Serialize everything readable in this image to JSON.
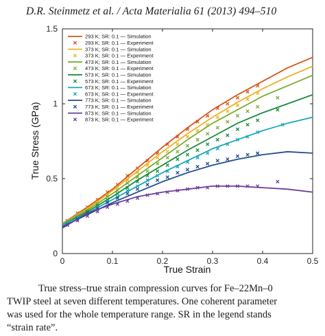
{
  "header": {
    "text": "D.R. Steinmetz et al. / Acta Materialia 61 (2013) 494–510"
  },
  "caption": {
    "lines": [
      "True stress–true strain compression curves for Fe–22Mn–0",
      "TWIP steel at seven different temperatures. One coherent parameter",
      "was used for the whole temperature range. SR in the legend stands",
      "“strain rate”."
    ]
  },
  "chart_data": {
    "type": "line",
    "title": "",
    "xlabel": "True Strain",
    "ylabel": "True Stress (GPa)",
    "xlim": [
      0,
      0.5
    ],
    "ylim": [
      0,
      1.5
    ],
    "xticks": [
      "0",
      "0.1",
      "0.2",
      "0.3",
      "0.4",
      "0.5"
    ],
    "yticks": [
      "0",
      "0.5",
      "1",
      "1.5"
    ],
    "legend_position": "top-left",
    "series": [
      {
        "name": "293 K; SR: 0.1 — Simulation",
        "kind": "line",
        "color": "#d95319",
        "x": [
          0,
          0.05,
          0.1,
          0.15,
          0.2,
          0.25,
          0.3,
          0.35,
          0.4,
          0.45,
          0.5
        ],
        "y": [
          0.2,
          0.31,
          0.43,
          0.57,
          0.71,
          0.84,
          0.96,
          1.06,
          1.15,
          1.24,
          1.31
        ]
      },
      {
        "name": "293 K; SR: 0.1 — Experiment",
        "kind": "markers",
        "color": "#d95319",
        "x": [
          0.01,
          0.03,
          0.05,
          0.07,
          0.09,
          0.11,
          0.13,
          0.15,
          0.17,
          0.19,
          0.21,
          0.23,
          0.25,
          0.27,
          0.29,
          0.31,
          0.33,
          0.35,
          0.37,
          0.39
        ],
        "y": [
          0.22,
          0.27,
          0.31,
          0.36,
          0.41,
          0.46,
          0.52,
          0.57,
          0.62,
          0.67,
          0.73,
          0.78,
          0.83,
          0.88,
          0.92,
          0.97,
          1.0,
          1.04,
          1.08,
          1.12
        ]
      },
      {
        "name": "373 K; SR: 0.1 — Simulation",
        "kind": "line",
        "color": "#edb120",
        "x": [
          0,
          0.05,
          0.1,
          0.15,
          0.2,
          0.25,
          0.3,
          0.35,
          0.4,
          0.45,
          0.5
        ],
        "y": [
          0.2,
          0.3,
          0.42,
          0.55,
          0.68,
          0.8,
          0.91,
          1.01,
          1.1,
          1.18,
          1.25
        ]
      },
      {
        "name": "373 K; SR: 0.1 — Experiment",
        "kind": "markers",
        "color": "#edb120",
        "x": [
          0.01,
          0.03,
          0.05,
          0.07,
          0.09,
          0.11,
          0.13,
          0.15,
          0.17,
          0.19,
          0.21,
          0.23,
          0.25,
          0.27,
          0.29,
          0.31,
          0.33,
          0.35,
          0.37,
          0.39
        ],
        "y": [
          0.21,
          0.26,
          0.3,
          0.34,
          0.39,
          0.44,
          0.49,
          0.54,
          0.59,
          0.64,
          0.68,
          0.73,
          0.78,
          0.82,
          0.86,
          0.91,
          0.95,
          0.99,
          1.03,
          1.07
        ]
      },
      {
        "name": "473 K; SR: 0.1 — Simulation",
        "kind": "line",
        "color": "#77ac30",
        "x": [
          0,
          0.05,
          0.1,
          0.15,
          0.2,
          0.25,
          0.3,
          0.35,
          0.4,
          0.45,
          0.5
        ],
        "y": [
          0.2,
          0.29,
          0.4,
          0.52,
          0.64,
          0.76,
          0.87,
          0.96,
          1.05,
          1.12,
          1.19
        ]
      },
      {
        "name": "473 K; SR: 0.1 — Experiment",
        "kind": "markers",
        "color": "#77ac30",
        "x": [
          0.01,
          0.03,
          0.05,
          0.07,
          0.09,
          0.11,
          0.13,
          0.15,
          0.17,
          0.19,
          0.21,
          0.23,
          0.25,
          0.27,
          0.29,
          0.31,
          0.33,
          0.35,
          0.37,
          0.39,
          0.43
        ],
        "y": [
          0.21,
          0.25,
          0.29,
          0.33,
          0.38,
          0.42,
          0.47,
          0.51,
          0.55,
          0.6,
          0.64,
          0.68,
          0.72,
          0.76,
          0.8,
          0.84,
          0.88,
          0.92,
          0.95,
          0.98,
          1.04
        ]
      },
      {
        "name": "573 K; SR: 0.1 — Simulation",
        "kind": "line",
        "color": "#1a8a3e",
        "x": [
          0,
          0.05,
          0.1,
          0.15,
          0.2,
          0.25,
          0.3,
          0.35,
          0.4,
          0.45,
          0.5
        ],
        "y": [
          0.19,
          0.28,
          0.38,
          0.49,
          0.59,
          0.69,
          0.78,
          0.87,
          0.94,
          1.0,
          1.06
        ]
      },
      {
        "name": "573 K; SR: 0.1 — Experiment",
        "kind": "markers",
        "color": "#1a8a3e",
        "x": [
          0.01,
          0.03,
          0.05,
          0.07,
          0.09,
          0.11,
          0.13,
          0.15,
          0.17,
          0.19,
          0.21,
          0.23,
          0.25,
          0.27,
          0.29,
          0.31,
          0.33,
          0.35,
          0.37,
          0.39,
          0.43
        ],
        "y": [
          0.2,
          0.24,
          0.28,
          0.32,
          0.36,
          0.4,
          0.44,
          0.48,
          0.52,
          0.55,
          0.59,
          0.63,
          0.66,
          0.69,
          0.73,
          0.76,
          0.79,
          0.83,
          0.86,
          0.89,
          0.96
        ]
      },
      {
        "name": "673 K; SR: 0.1 — Simulation",
        "kind": "line",
        "color": "#17a6b8",
        "x": [
          0,
          0.05,
          0.1,
          0.15,
          0.2,
          0.25,
          0.3,
          0.35,
          0.4,
          0.45,
          0.5
        ],
        "y": [
          0.19,
          0.27,
          0.36,
          0.45,
          0.54,
          0.62,
          0.7,
          0.76,
          0.82,
          0.87,
          0.91
        ]
      },
      {
        "name": "673 K; SR: 0.1 — Experiment",
        "kind": "markers",
        "color": "#17a6b8",
        "x": [
          0.01,
          0.03,
          0.05,
          0.07,
          0.09,
          0.11,
          0.13,
          0.15,
          0.17,
          0.19,
          0.21,
          0.23,
          0.25,
          0.27,
          0.29,
          0.31,
          0.33,
          0.35,
          0.37,
          0.39,
          0.44
        ],
        "y": [
          0.2,
          0.24,
          0.27,
          0.31,
          0.35,
          0.38,
          0.42,
          0.45,
          0.49,
          0.52,
          0.55,
          0.58,
          0.61,
          0.64,
          0.67,
          0.7,
          0.73,
          0.76,
          0.78,
          0.81,
          0.86
        ]
      },
      {
        "name": "773 K; SR: 0.1 — Simulation",
        "kind": "line",
        "color": "#1f4e8c",
        "x": [
          0,
          0.05,
          0.1,
          0.15,
          0.2,
          0.25,
          0.3,
          0.35,
          0.4,
          0.45,
          0.5
        ],
        "y": [
          0.18,
          0.26,
          0.34,
          0.41,
          0.48,
          0.54,
          0.59,
          0.63,
          0.66,
          0.68,
          0.67
        ]
      },
      {
        "name": "773 K; SR: 0.1 — Experiment",
        "kind": "markers",
        "color": "#1f4e8c",
        "x": [
          0.01,
          0.03,
          0.05,
          0.07,
          0.09,
          0.11,
          0.13,
          0.15,
          0.17,
          0.19,
          0.21,
          0.23,
          0.25,
          0.27,
          0.29,
          0.31,
          0.33,
          0.35,
          0.37,
          0.39
        ],
        "y": [
          0.19,
          0.23,
          0.27,
          0.3,
          0.34,
          0.37,
          0.4,
          0.43,
          0.46,
          0.49,
          0.51,
          0.54,
          0.56,
          0.58,
          0.6,
          0.62,
          0.63,
          0.65,
          0.66,
          0.67
        ]
      },
      {
        "name": "873 K; SR: 0.1 — Simulation",
        "kind": "line",
        "color": "#6a3d9a",
        "x": [
          0,
          0.05,
          0.1,
          0.15,
          0.2,
          0.25,
          0.3,
          0.35,
          0.4,
          0.45,
          0.5
        ],
        "y": [
          0.17,
          0.27,
          0.33,
          0.38,
          0.41,
          0.43,
          0.45,
          0.45,
          0.44,
          0.43,
          0.41
        ]
      },
      {
        "name": "873 K; SR: 0.1 — Experiment",
        "kind": "markers",
        "color": "#6a3d9a",
        "x": [
          0.01,
          0.03,
          0.05,
          0.07,
          0.09,
          0.11,
          0.13,
          0.15,
          0.17,
          0.19,
          0.21,
          0.23,
          0.25,
          0.27,
          0.29,
          0.31,
          0.33,
          0.35,
          0.37,
          0.39,
          0.43
        ],
        "y": [
          0.19,
          0.22,
          0.25,
          0.28,
          0.31,
          0.33,
          0.35,
          0.37,
          0.39,
          0.4,
          0.41,
          0.42,
          0.43,
          0.44,
          0.44,
          0.45,
          0.45,
          0.45,
          0.45,
          0.45,
          0.48
        ]
      }
    ]
  }
}
